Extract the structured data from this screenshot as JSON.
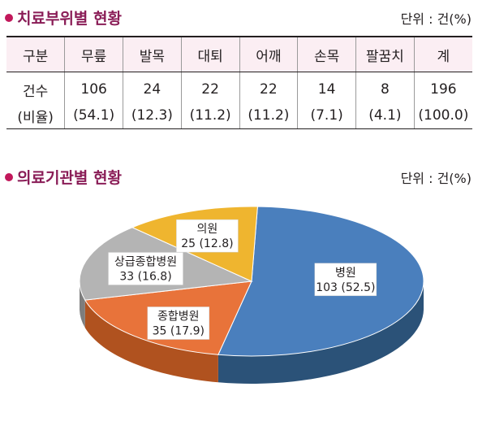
{
  "section1": {
    "title": "치료부위별 현황",
    "unit": "단위 : 건(%)"
  },
  "section2": {
    "title": "의료기관별 현황",
    "unit": "단위 : 건(%)"
  },
  "table": {
    "headers": [
      "구분",
      "무릎",
      "발목",
      "대퇴",
      "어깨",
      "손목",
      "팔꿈치",
      "계"
    ],
    "count_label": "건수",
    "counts": [
      "106",
      "24",
      "22",
      "22",
      "14",
      "8",
      "196"
    ],
    "ratio_label": "(비율)",
    "ratios": [
      "(54.1)",
      "(12.3)",
      "(11.2)",
      "(11.2)",
      "(7.1)",
      "(4.1)",
      "(100.0)"
    ]
  },
  "chart_data": [
    {
      "type": "table",
      "columns": [
        "구분",
        "무릎",
        "발목",
        "대퇴",
        "어깨",
        "손목",
        "팔꿈치",
        "계"
      ],
      "rows": [
        {
          "label": "건수",
          "values": [
            106,
            24,
            22,
            22,
            14,
            8,
            196
          ]
        },
        {
          "label": "비율",
          "values": [
            54.1,
            12.3,
            11.2,
            11.2,
            7.1,
            4.1,
            100.0
          ]
        }
      ]
    },
    {
      "type": "pie",
      "slices": [
        {
          "name": "병원",
          "value": 103,
          "percent": 52.5,
          "label": "103 (52.5)",
          "color": "#4a7fbd",
          "side": "#2b5278"
        },
        {
          "name": "종합병원",
          "value": 35,
          "percent": 17.9,
          "label": "35 (17.9)",
          "color": "#e8733a",
          "side": "#b0521f"
        },
        {
          "name": "상급종합병원",
          "value": 33,
          "percent": 16.8,
          "label": "33 (16.8)",
          "color": "#b4b4b4",
          "side": "#7d7d7d"
        },
        {
          "name": "의원",
          "value": 25,
          "percent": 12.8,
          "label": "25 (12.8)",
          "color": "#efb52f",
          "side": "#b88717"
        }
      ]
    }
  ]
}
